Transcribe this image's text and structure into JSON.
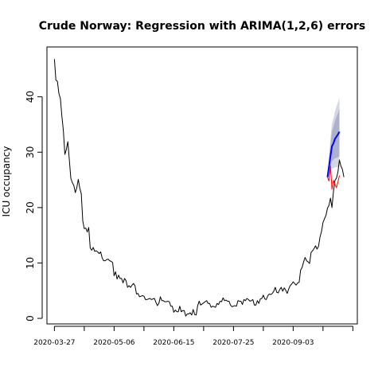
{
  "chart_data": {
    "type": "line",
    "title": "Crude Norway: Regression with ARIMA(1,2,6) errors",
    "xlabel": "",
    "ylabel": "ICU occupancy",
    "x_tick_labels": [
      "2020-03-27",
      "2020-05-06",
      "2020-06-15",
      "2020-07-25",
      "2020-09-03"
    ],
    "x_ticks": [
      "2020-03-27",
      "2020-04-16",
      "2020-05-06",
      "2020-05-26",
      "2020-06-15",
      "2020-07-05",
      "2020-07-25",
      "2020-08-14",
      "2020-09-03",
      "2020-09-23",
      "2020-10-13"
    ],
    "xlim": [
      "2020-03-22",
      "2020-10-16"
    ],
    "y_ticks": [
      0,
      10,
      20,
      30,
      40
    ],
    "ylim": [
      -1,
      49
    ],
    "grid": false,
    "legend": "none",
    "series": [
      {
        "color": "#000000",
        "x_start": "2020-03-27",
        "x_step_days": 1,
        "values": [
          46.8,
          43.0,
          42.8,
          40.6,
          39.7,
          36.5,
          33.9,
          29.6,
          30.5,
          31.9,
          28.6,
          25.3,
          24.5,
          24.0,
          22.7,
          23.6,
          25.1,
          23.5,
          22.5,
          17.6,
          16.2,
          16.3,
          15.6,
          16.4,
          12.7,
          12.3,
          12.8,
          12.1,
          12.2,
          12.0,
          11.7,
          12.0,
          10.9,
          10.4,
          10.4,
          10.6,
          10.7,
          10.4,
          10.3,
          10.1,
          7.7,
          8.4,
          7.1,
          7.8,
          7.2,
          7.2,
          6.4,
          7.2,
          6.8,
          5.6,
          5.9,
          5.6,
          6.0,
          6.3,
          5.9,
          4.4,
          4.5,
          3.9,
          4.0,
          4.1,
          4.0,
          3.4,
          3.4,
          3.5,
          3.6,
          3.4,
          3.5,
          3.6,
          2.9,
          2.3,
          2.7,
          3.9,
          3.2,
          3.2,
          3.0,
          3.0,
          3.1,
          3.0,
          2.2,
          2.2,
          1.1,
          1.5,
          1.2,
          1.2,
          2.2,
          1.2,
          1.4,
          1.4,
          0.4,
          0.8,
          0.8,
          1.0,
          0.6,
          1.6,
          0.7,
          0.6,
          2.3,
          3.1,
          2.4,
          2.6,
          2.8,
          3.0,
          3.2,
          2.7,
          2.7,
          2.0,
          2.2,
          2.1,
          2.0,
          2.7,
          2.5,
          3.1,
          3.0,
          3.7,
          3.2,
          3.3,
          3.1,
          3.1,
          2.4,
          2.1,
          2.2,
          2.3,
          2.2,
          3.2,
          3.1,
          3.1,
          2.5,
          3.4,
          3.2,
          3.6,
          3.4,
          3.1,
          3.2,
          3.4,
          2.4,
          2.4,
          3.2,
          2.7,
          3.5,
          3.6,
          4.2,
          3.5,
          3.4,
          4.1,
          4.4,
          4.3,
          4.5,
          4.9,
          5.6,
          4.7,
          4.6,
          5.2,
          5.6,
          4.9,
          5.5,
          5.1,
          4.5,
          5.3,
          5.9,
          6.2,
          6.6,
          6.3,
          6.0,
          6.4,
          6.5,
          8.7,
          9.2,
          10.2,
          11.0,
          10.4,
          10.2,
          9.9,
          11.9,
          12.2,
          12.6,
          13.1,
          12.5,
          13.0,
          14.7,
          15.7,
          17.3,
          18.0,
          18.6,
          19.9,
          20.4,
          21.7,
          20.0,
          22.9,
          24.9,
          25.3,
          26.4,
          28.6,
          27.5,
          26.9,
          25.5
        ]
      },
      {
        "color": "#ff0000",
        "x": [
          "2020-09-26",
          "2020-09-27",
          "2020-09-28",
          "2020-09-29",
          "2020-09-30",
          "2020-10-01",
          "2020-10-02",
          "2020-10-03",
          "2020-10-04"
        ],
        "values": [
          25.5,
          24.8,
          27.5,
          23.3,
          24.9,
          24.2,
          23.6,
          24.6,
          25.8
        ]
      },
      {
        "color": "#0000ff",
        "x": [
          "2020-09-26",
          "2020-09-27",
          "2020-09-28",
          "2020-09-29",
          "2020-09-30",
          "2020-10-01",
          "2020-10-02",
          "2020-10-03",
          "2020-10-04"
        ],
        "values": [
          25.5,
          27.4,
          29.3,
          31.1,
          31.6,
          32.4,
          32.8,
          33.2,
          33.7
        ],
        "lower_80": [
          25.5,
          26.0,
          27.2,
          28.4,
          28.6,
          28.9,
          29.0,
          29.1,
          29.3
        ],
        "upper_80": [
          25.5,
          28.8,
          31.4,
          33.8,
          34.6,
          35.6,
          36.4,
          37.0,
          37.9
        ],
        "lower_95": [
          25.5,
          25.4,
          26.2,
          27.0,
          27.1,
          27.3,
          27.3,
          27.3,
          27.4
        ],
        "upper_95": [
          25.5,
          29.4,
          32.4,
          35.2,
          36.1,
          37.3,
          38.2,
          39.0,
          39.8
        ]
      }
    ]
  },
  "colors": {
    "band_95": "#d6d6e3",
    "band_80": "#aeb1cc"
  }
}
